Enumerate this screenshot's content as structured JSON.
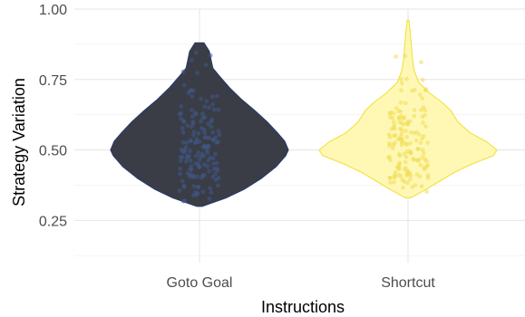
{
  "chart_data": {
    "type": "violin",
    "xlabel": "Instructions",
    "ylabel": "Strategy Variation",
    "categories": [
      "Goto Goal",
      "Shortcut"
    ],
    "ylim": [
      0.1,
      1.0
    ],
    "y_ticks": [
      0.25,
      0.5,
      0.75,
      1.0
    ],
    "y_tick_labels": [
      "0.25",
      "0.50",
      "0.75",
      "1.00"
    ],
    "grid": true,
    "legend": "none",
    "series": [
      {
        "category": "Goto Goal",
        "fill": "#3a3d46",
        "stroke": "#2b3a6b",
        "point_color": "#3f5a8a",
        "min": 0.3,
        "max": 0.88,
        "density_profile": [
          [
            0.3,
            0.03
          ],
          [
            0.33,
            0.3
          ],
          [
            0.36,
            0.5
          ],
          [
            0.4,
            0.7
          ],
          [
            0.44,
            0.86
          ],
          [
            0.48,
            0.97
          ],
          [
            0.5,
            1.0
          ],
          [
            0.53,
            0.96
          ],
          [
            0.56,
            0.88
          ],
          [
            0.6,
            0.76
          ],
          [
            0.64,
            0.62
          ],
          [
            0.68,
            0.47
          ],
          [
            0.72,
            0.34
          ],
          [
            0.76,
            0.23
          ],
          [
            0.79,
            0.15
          ],
          [
            0.82,
            0.13
          ],
          [
            0.85,
            0.11
          ],
          [
            0.88,
            0.05
          ]
        ]
      },
      {
        "category": "Shortcut",
        "fill": "#fff7a8",
        "stroke": "#f2e24a",
        "point_color": "#f0dc55",
        "min": 0.33,
        "max": 0.96,
        "density_profile": [
          [
            0.33,
            0.03
          ],
          [
            0.36,
            0.2
          ],
          [
            0.39,
            0.36
          ],
          [
            0.42,
            0.52
          ],
          [
            0.45,
            0.72
          ],
          [
            0.48,
            0.96
          ],
          [
            0.5,
            1.0
          ],
          [
            0.53,
            0.88
          ],
          [
            0.56,
            0.7
          ],
          [
            0.6,
            0.56
          ],
          [
            0.64,
            0.48
          ],
          [
            0.67,
            0.38
          ],
          [
            0.7,
            0.25
          ],
          [
            0.74,
            0.12
          ],
          [
            0.78,
            0.07
          ],
          [
            0.82,
            0.05
          ],
          [
            0.86,
            0.04
          ],
          [
            0.9,
            0.03
          ],
          [
            0.96,
            0.01
          ]
        ]
      }
    ]
  }
}
